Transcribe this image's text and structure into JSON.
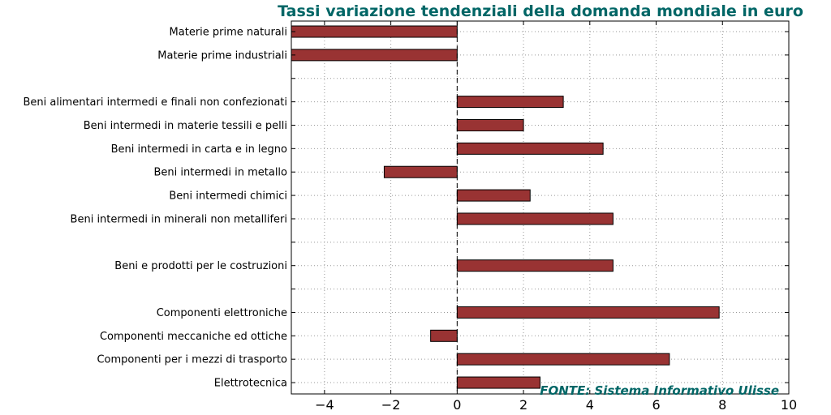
{
  "chart_data": {
    "type": "bar",
    "orientation": "horizontal",
    "title": "Tassi variazione tendenziali della domanda mondiale in euro",
    "source": "FONTE: Sistema Informativo Ulisse",
    "categories": [
      "Materie prime naturali",
      "Materie prime industriali",
      "",
      "Beni alimentari intermedi e finali non confezionati",
      "Beni intermedi in materie tessili e pelli",
      "Beni intermedi in carta e in legno",
      "Beni intermedi in metallo",
      "Beni intermedi chimici",
      "Beni intermedi in minerali non metalliferi",
      "",
      "Beni e prodotti per le costruzioni",
      "",
      "Componenti elettroniche",
      "Componenti meccaniche ed ottiche",
      "Componenti per i mezzi di trasporto",
      "Elettrotecnica"
    ],
    "values": [
      -5.0,
      -5.0,
      null,
      3.2,
      2.0,
      4.4,
      -2.2,
      2.2,
      4.7,
      null,
      4.7,
      null,
      7.9,
      -0.8,
      6.4,
      2.5
    ],
    "xlim": [
      -5,
      10
    ],
    "xticks": [
      -4,
      -2,
      0,
      2,
      4,
      6,
      8,
      10
    ],
    "xtick_labels": [
      "−4",
      "−2",
      "0",
      "2",
      "4",
      "6",
      "8",
      "10"
    ],
    "bar_color": "#993333",
    "grid": true,
    "zero_line": "dashed"
  }
}
